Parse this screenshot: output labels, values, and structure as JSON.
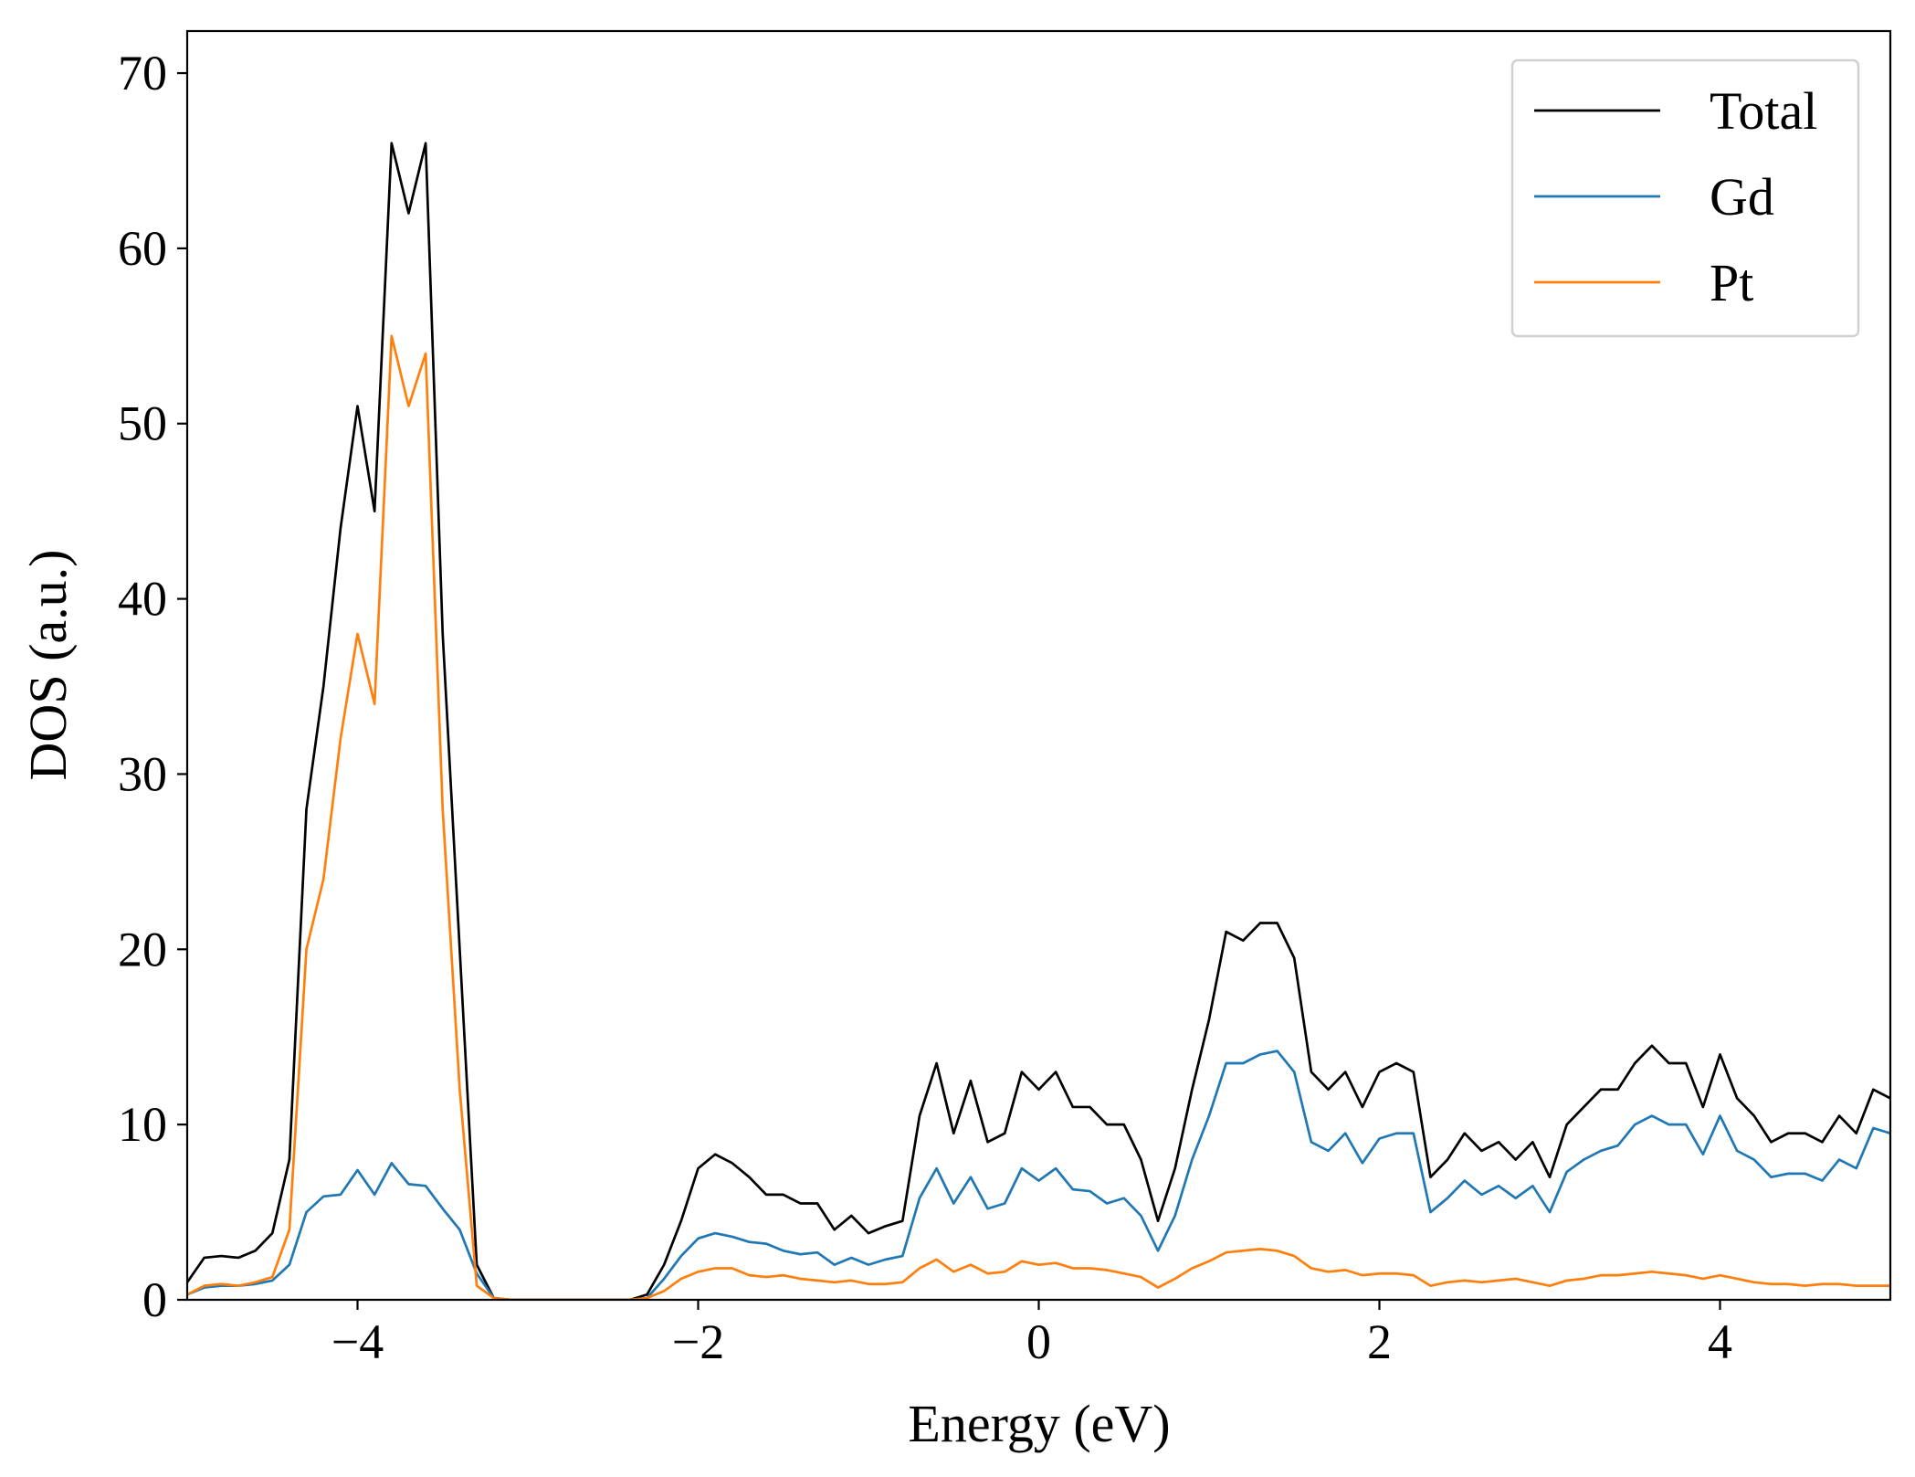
{
  "chart_data": {
    "type": "line",
    "xlabel": "Energy (eV)",
    "ylabel": "DOS (a.u.)",
    "x": [
      -5.0,
      -4.9,
      -4.8,
      -4.7,
      -4.6,
      -4.5,
      -4.4,
      -4.3,
      -4.2,
      -4.1,
      -4.0,
      -3.9,
      -3.8,
      -3.7,
      -3.6,
      -3.5,
      -3.4,
      -3.3,
      -3.2,
      -3.1,
      -3.0,
      -2.9,
      -2.8,
      -2.7,
      -2.6,
      -2.5,
      -2.4,
      -2.3,
      -2.2,
      -2.1,
      -2.0,
      -1.9,
      -1.8,
      -1.7,
      -1.6,
      -1.5,
      -1.4,
      -1.3,
      -1.2,
      -1.1,
      -1.0,
      -0.9,
      -0.8,
      -0.7,
      -0.6,
      -0.5,
      -0.4,
      -0.3,
      -0.2,
      -0.1,
      0.0,
      0.1,
      0.2,
      0.3,
      0.4,
      0.5,
      0.6,
      0.7,
      0.8,
      0.9,
      1.0,
      1.1,
      1.2,
      1.3,
      1.4,
      1.5,
      1.6,
      1.7,
      1.8,
      1.9,
      2.0,
      2.1,
      2.2,
      2.3,
      2.4,
      2.5,
      2.6,
      2.7,
      2.8,
      2.9,
      3.0,
      3.1,
      3.2,
      3.3,
      3.4,
      3.5,
      3.6,
      3.7,
      3.8,
      3.9,
      4.0,
      4.1,
      4.2,
      4.3,
      4.4,
      4.5,
      4.6,
      4.7,
      4.8,
      4.9,
      5.0
    ],
    "series": [
      {
        "name": "Total",
        "color": "#000000",
        "values": [
          1,
          2.4,
          2.5,
          2.4,
          2.8,
          3.8,
          8,
          28,
          35,
          44,
          51,
          45,
          66,
          62,
          66,
          38,
          20,
          2,
          0.1,
          0,
          0,
          0,
          0,
          0,
          0,
          0,
          0,
          0.3,
          2,
          4.5,
          7.5,
          8.3,
          7.8,
          7,
          6,
          6,
          5.5,
          5.5,
          4,
          4.8,
          3.8,
          4.2,
          4.5,
          10.5,
          13.5,
          9.5,
          12.5,
          9,
          9.5,
          13,
          12,
          13,
          11,
          11,
          10,
          10,
          8,
          4.5,
          7.5,
          12,
          16,
          21,
          20.5,
          21.5,
          21.5,
          19.5,
          13,
          12,
          13,
          11,
          13,
          13.5,
          13,
          7,
          8,
          9.5,
          8.5,
          9,
          8,
          9,
          7,
          10,
          11,
          12,
          12,
          13.5,
          14.5,
          13.5,
          13.5,
          11,
          14,
          11.5,
          10.5,
          9,
          9.5,
          9.5,
          9,
          10.5,
          9.5,
          12,
          11.5
        ]
      },
      {
        "name": "Gd",
        "color": "#1f77b4",
        "values": [
          0.3,
          0.7,
          0.8,
          0.8,
          0.9,
          1.1,
          2,
          5,
          5.9,
          6,
          7.4,
          6,
          7.8,
          6.6,
          6.5,
          5.2,
          4,
          1.5,
          0.1,
          0,
          0,
          0,
          0,
          0,
          0,
          0,
          0,
          0.1,
          1.2,
          2.5,
          3.5,
          3.8,
          3.6,
          3.3,
          3.2,
          2.8,
          2.6,
          2.7,
          2,
          2.4,
          2,
          2.3,
          2.5,
          5.8,
          7.5,
          5.5,
          7,
          5.2,
          5.5,
          7.5,
          6.8,
          7.5,
          6.3,
          6.2,
          5.5,
          5.8,
          4.8,
          2.8,
          4.8,
          8,
          10.5,
          13.5,
          13.5,
          14,
          14.2,
          13,
          9,
          8.5,
          9.5,
          7.8,
          9.2,
          9.5,
          9.5,
          5,
          5.8,
          6.8,
          6,
          6.5,
          5.8,
          6.5,
          5,
          7.3,
          8,
          8.5,
          8.8,
          10,
          10.5,
          10,
          10,
          8.3,
          10.5,
          8.5,
          8,
          7,
          7.2,
          7.2,
          6.8,
          8,
          7.5,
          9.8,
          9.5
        ]
      },
      {
        "name": "Pt",
        "color": "#ff7f0e",
        "values": [
          0.3,
          0.8,
          0.9,
          0.8,
          1.0,
          1.3,
          4,
          20,
          24,
          32,
          38,
          34,
          55,
          51,
          54,
          28,
          12,
          0.8,
          0.1,
          0,
          0,
          0,
          0,
          0,
          0,
          0,
          0,
          0.1,
          0.5,
          1.2,
          1.6,
          1.8,
          1.8,
          1.4,
          1.3,
          1.4,
          1.2,
          1.1,
          1,
          1.1,
          0.9,
          0.9,
          1.0,
          1.8,
          2.3,
          1.6,
          2,
          1.5,
          1.6,
          2.2,
          2.0,
          2.1,
          1.8,
          1.8,
          1.7,
          1.5,
          1.3,
          0.7,
          1.2,
          1.8,
          2.2,
          2.7,
          2.8,
          2.9,
          2.8,
          2.5,
          1.8,
          1.6,
          1.7,
          1.4,
          1.5,
          1.5,
          1.4,
          0.8,
          1,
          1.1,
          1,
          1.1,
          1.2,
          1,
          0.8,
          1.1,
          1.2,
          1.4,
          1.4,
          1.5,
          1.6,
          1.5,
          1.4,
          1.2,
          1.4,
          1.2,
          1,
          0.9,
          0.9,
          0.8,
          0.9,
          0.9,
          0.8,
          0.8,
          0.8
        ]
      }
    ],
    "xlim": [
      -5,
      5
    ],
    "xticks": [
      {
        "value": -4,
        "label": "−4"
      },
      {
        "value": -2,
        "label": "−2"
      },
      0,
      2,
      4
    ],
    "ylim": [
      0,
      72.4
    ],
    "yticks": [
      0,
      10,
      20,
      30,
      40,
      50,
      60,
      70
    ],
    "legend": "upper right"
  }
}
